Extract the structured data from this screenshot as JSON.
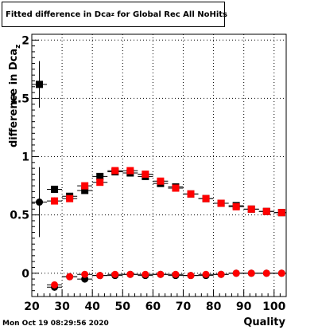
{
  "title": {
    "prefix": "Fitted difference in Dca",
    "subscript": "z",
    "suffix": " for Global Rec All NoHits"
  },
  "timestamp": "Mon Oct 19 08:29:56 2020",
  "chart_data": {
    "type": "scatter",
    "title": "Fitted difference in Dca_z for Global Rec All NoHits",
    "xlabel": "Quality",
    "ylabel": "difference in Dca_z",
    "ylabel_main": "difference in Dca",
    "ylabel_sub": "z",
    "xlim": [
      20,
      104
    ],
    "ylim": [
      -0.2,
      2.05
    ],
    "grid": true,
    "x_ticks": [
      20,
      30,
      40,
      50,
      60,
      70,
      80,
      90,
      100
    ],
    "y_ticks": [
      0,
      0.5,
      1,
      1.5,
      2
    ],
    "y_tick_labels": [
      "0",
      "0.5",
      "1",
      "1.5",
      "2"
    ],
    "series": [
      {
        "marker": "square",
        "color": "#000000",
        "half_width": 2.5,
        "x": [
          22.5,
          27.5,
          32.5,
          37.5,
          42.5,
          47.5,
          52.5,
          57.5,
          62.5,
          67.5,
          72.5,
          77.5,
          82.5,
          87.5,
          92.5,
          97.5,
          102.5
        ],
        "y": [
          1.62,
          0.72,
          0.66,
          0.71,
          0.83,
          0.87,
          0.86,
          0.83,
          0.77,
          0.74,
          0.68,
          0.64,
          0.6,
          0.58,
          0.55,
          0.53,
          0.52
        ],
        "err": [
          0.2,
          0.03,
          0.02,
          0.02,
          0.02,
          0.02,
          0.02,
          0.02,
          0.02,
          0.02,
          0.015,
          0.015,
          0.015,
          0.015,
          0.015,
          0.015,
          0.015
        ]
      },
      {
        "marker": "square",
        "color": "#ff0000",
        "half_width": 2.5,
        "x": [
          27.5,
          32.5,
          37.5,
          42.5,
          47.5,
          52.5,
          57.5,
          62.5,
          67.5,
          72.5,
          77.5,
          82.5,
          87.5,
          92.5,
          97.5,
          102.5
        ],
        "y": [
          0.62,
          0.64,
          0.75,
          0.78,
          0.88,
          0.88,
          0.85,
          0.79,
          0.73,
          0.68,
          0.64,
          0.6,
          0.57,
          0.55,
          0.53,
          0.52
        ],
        "err": [
          0.03,
          0.02,
          0.02,
          0.02,
          0.02,
          0.02,
          0.02,
          0.02,
          0.02,
          0.015,
          0.015,
          0.015,
          0.015,
          0.015,
          0.015,
          0.015
        ]
      },
      {
        "marker": "circle",
        "color": "#000000",
        "half_width": 2.5,
        "x": [
          22.5,
          27.5,
          32.5,
          37.5,
          42.5,
          47.5,
          52.5,
          57.5,
          62.5,
          67.5,
          72.5,
          77.5,
          82.5,
          87.5,
          92.5,
          97.5,
          102.5
        ],
        "y": [
          0.61,
          -0.12,
          -0.03,
          -0.05,
          -0.02,
          -0.02,
          -0.01,
          -0.02,
          -0.01,
          -0.02,
          -0.02,
          -0.02,
          -0.01,
          0.0,
          0.0,
          0.0,
          0.0
        ],
        "err": [
          0.3,
          0.03,
          0.02,
          0.02,
          0.015,
          0.015,
          0.015,
          0.015,
          0.015,
          0.015,
          0.015,
          0.015,
          0.015,
          0.015,
          0.015,
          0.015,
          0.015
        ]
      },
      {
        "marker": "circle",
        "color": "#ff0000",
        "half_width": 2.5,
        "x": [
          27.5,
          32.5,
          37.5,
          42.5,
          47.5,
          52.5,
          57.5,
          62.5,
          67.5,
          72.5,
          77.5,
          82.5,
          87.5,
          92.5,
          97.5,
          102.5
        ],
        "y": [
          -0.1,
          -0.03,
          -0.01,
          -0.02,
          -0.01,
          -0.01,
          -0.01,
          -0.01,
          -0.01,
          -0.02,
          -0.01,
          -0.01,
          0.0,
          0.0,
          0.0,
          0.0
        ],
        "err": [
          0.03,
          0.02,
          0.02,
          0.015,
          0.015,
          0.015,
          0.015,
          0.015,
          0.015,
          0.015,
          0.015,
          0.015,
          0.015,
          0.015,
          0.015,
          0.015
        ]
      }
    ]
  }
}
